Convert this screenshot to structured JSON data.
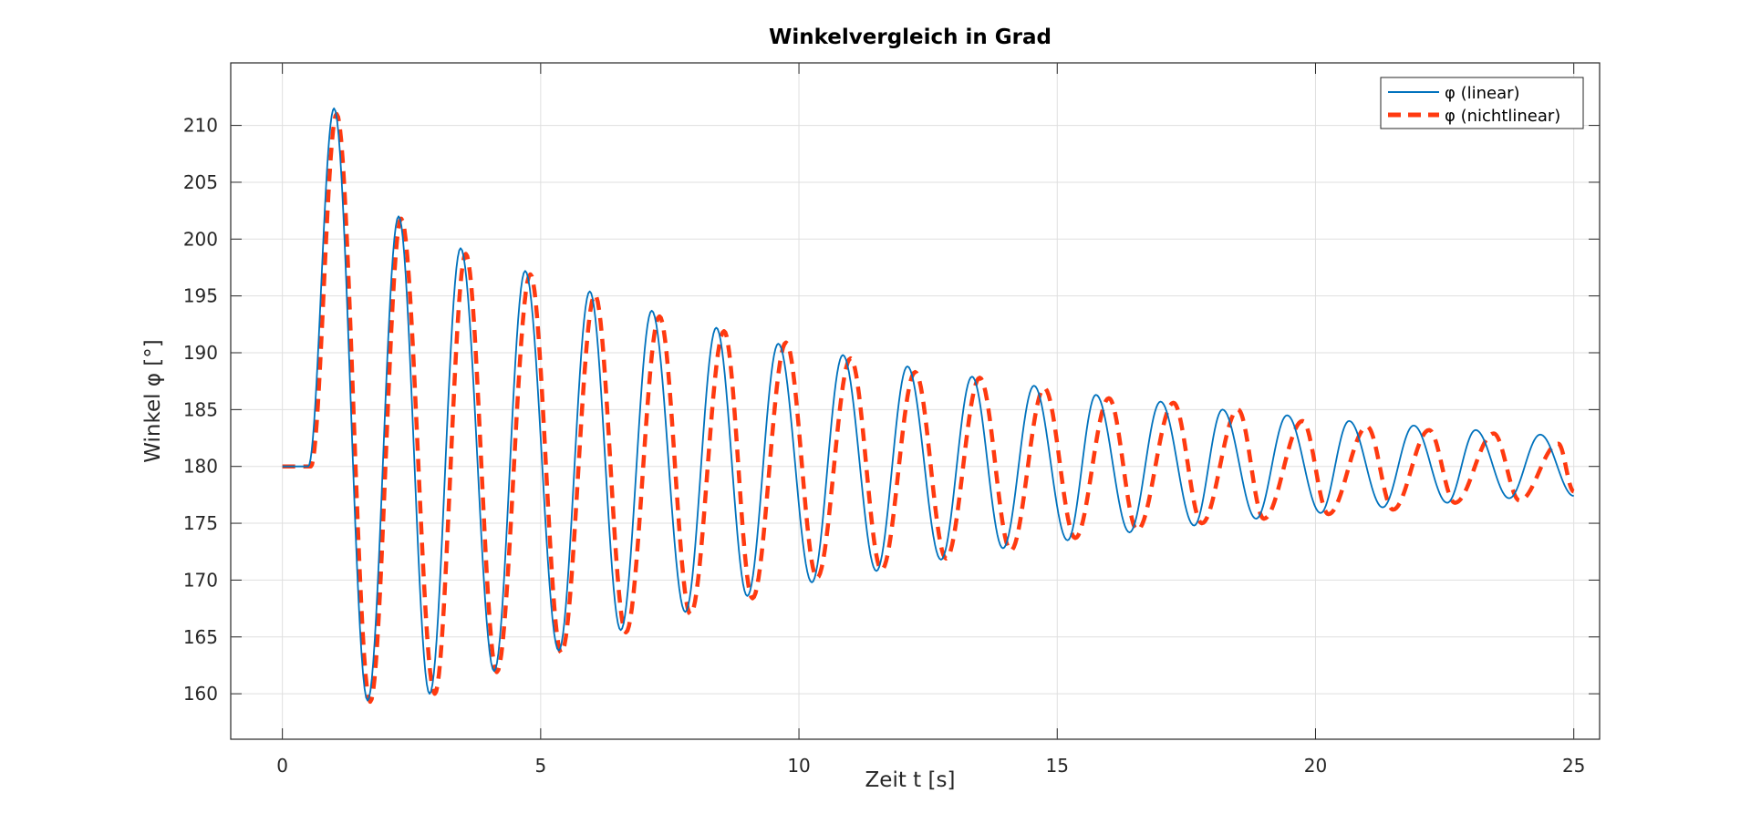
{
  "chart_data": {
    "type": "line",
    "title": "Winkelvergleich in Grad",
    "xlabel": "Zeit t [s]",
    "ylabel": "Winkel φ [°]",
    "xlim": [
      -1,
      25.5
    ],
    "ylim": [
      156.0,
      215.5
    ],
    "xticks": [
      0,
      5,
      10,
      15,
      20,
      25
    ],
    "yticks": [
      160,
      165,
      170,
      175,
      180,
      185,
      190,
      195,
      200,
      205,
      210
    ],
    "grid": true,
    "legend_position": "top-right",
    "series": [
      {
        "name": "φ (linear)",
        "color": "#0072BD",
        "style": "solid",
        "peaks": [
          [
            1.0,
            211.5
          ],
          [
            2.25,
            202.0
          ],
          [
            3.45,
            199.2
          ],
          [
            4.7,
            197.2
          ],
          [
            5.95,
            195.4
          ],
          [
            7.15,
            193.7
          ],
          [
            8.4,
            192.2
          ],
          [
            9.6,
            190.8
          ],
          [
            10.85,
            189.8
          ],
          [
            12.1,
            188.8
          ],
          [
            13.35,
            187.9
          ],
          [
            14.55,
            187.1
          ],
          [
            15.75,
            186.3
          ],
          [
            17.0,
            185.7
          ],
          [
            18.2,
            185.0
          ],
          [
            19.45,
            184.5
          ],
          [
            20.65,
            184.0
          ],
          [
            21.9,
            183.6
          ],
          [
            23.1,
            183.2
          ],
          [
            24.35,
            182.8
          ]
        ],
        "troughs": [
          [
            1.65,
            159.4
          ],
          [
            2.85,
            160.0
          ],
          [
            4.1,
            162.0
          ],
          [
            5.35,
            163.8
          ],
          [
            6.55,
            165.6
          ],
          [
            7.8,
            167.2
          ],
          [
            9.0,
            168.6
          ],
          [
            10.25,
            169.8
          ],
          [
            11.5,
            170.8
          ],
          [
            12.75,
            171.8
          ],
          [
            13.95,
            172.8
          ],
          [
            15.2,
            173.5
          ],
          [
            16.4,
            174.2
          ],
          [
            17.65,
            174.8
          ],
          [
            18.85,
            175.4
          ],
          [
            20.1,
            175.9
          ],
          [
            21.3,
            176.4
          ],
          [
            22.55,
            176.8
          ],
          [
            23.75,
            177.2
          ]
        ],
        "start": [
          [
            0.0,
            180.0
          ],
          [
            0.5,
            180.0
          ]
        ],
        "end": [
          25.0,
          177.4
        ]
      },
      {
        "name": "φ (nichtlinear)",
        "color": "#FF3A10",
        "style": "dashed",
        "peaks": [
          [
            1.05,
            211.0
          ],
          [
            2.3,
            201.8
          ],
          [
            3.55,
            198.7
          ],
          [
            4.8,
            196.9
          ],
          [
            6.05,
            195.1
          ],
          [
            7.3,
            193.2
          ],
          [
            8.55,
            191.9
          ],
          [
            9.75,
            190.9
          ],
          [
            11.0,
            189.5
          ],
          [
            12.25,
            188.3
          ],
          [
            13.5,
            187.8
          ],
          [
            14.75,
            186.9
          ],
          [
            16.0,
            186.0
          ],
          [
            17.25,
            185.6
          ],
          [
            18.5,
            185.0
          ],
          [
            19.75,
            184.0
          ],
          [
            21.0,
            183.5
          ],
          [
            22.2,
            183.2
          ],
          [
            23.45,
            182.9
          ],
          [
            24.7,
            182.0
          ]
        ],
        "troughs": [
          [
            1.7,
            159.3
          ],
          [
            2.95,
            160.0
          ],
          [
            4.15,
            161.9
          ],
          [
            5.4,
            163.6
          ],
          [
            6.65,
            165.4
          ],
          [
            7.9,
            167.0
          ],
          [
            9.1,
            168.4
          ],
          [
            10.35,
            170.2
          ],
          [
            11.6,
            170.9
          ],
          [
            12.85,
            171.9
          ],
          [
            14.1,
            172.6
          ],
          [
            15.35,
            173.7
          ],
          [
            16.55,
            174.4
          ],
          [
            17.8,
            175.0
          ],
          [
            19.0,
            175.4
          ],
          [
            20.25,
            175.8
          ],
          [
            21.5,
            176.2
          ],
          [
            22.7,
            176.8
          ],
          [
            23.95,
            177.0
          ]
        ],
        "start": [
          [
            0.0,
            180.0
          ],
          [
            0.55,
            180.0
          ]
        ],
        "end": [
          25.0,
          177.8
        ]
      }
    ]
  }
}
